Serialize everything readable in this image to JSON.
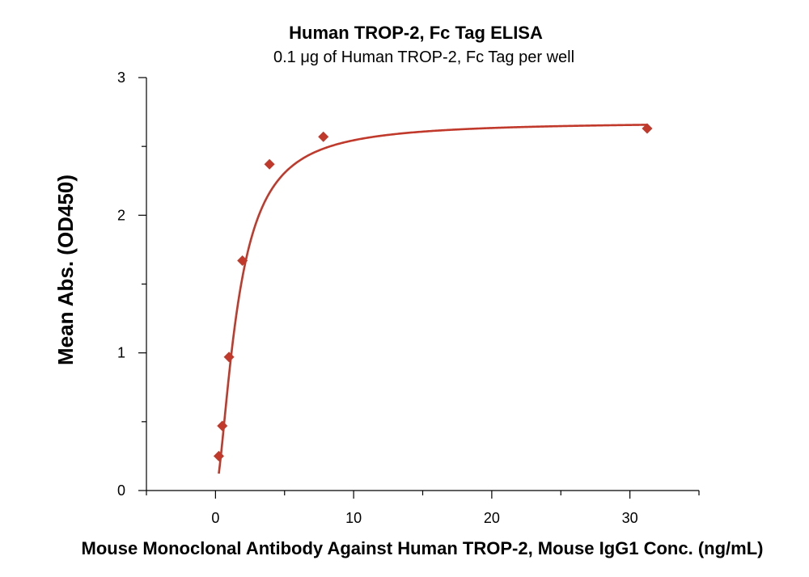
{
  "chart_data": {
    "type": "scatter",
    "title": "Human TROP-2, Fc Tag ELISA",
    "subtitle": "0.1 μg of Human TROP-2, Fc Tag per well",
    "xlabel": "Mouse Monoclonal Antibody Against Human TROP-2, Mouse IgG1 Conc. (ng/mL)",
    "ylabel": "Mean Abs. (OD450)",
    "xlim": [
      -5,
      35
    ],
    "ylim": [
      0,
      3
    ],
    "x_ticks": [
      0,
      10,
      20,
      30
    ],
    "x_ticks_minor": [
      -5,
      5,
      15,
      25,
      35
    ],
    "y_ticks": [
      0,
      1,
      2,
      3
    ],
    "y_ticks_minor": [
      0.5,
      1.5,
      2.5
    ],
    "grid": false,
    "legend": "none",
    "series": [
      {
        "marker": "diamond",
        "color": "#c0392b",
        "x": [
          0.24,
          0.49,
          0.98,
          1.95,
          3.91,
          7.81,
          31.25
        ],
        "y": [
          0.25,
          0.47,
          0.97,
          1.67,
          2.37,
          2.57,
          2.63
        ]
      }
    ],
    "fit": {
      "model": "four-parameter logistic",
      "color": "#c0392b",
      "bottom": 0.0,
      "top": 2.68,
      "ec50": 1.6,
      "hill": 1.6
    }
  }
}
